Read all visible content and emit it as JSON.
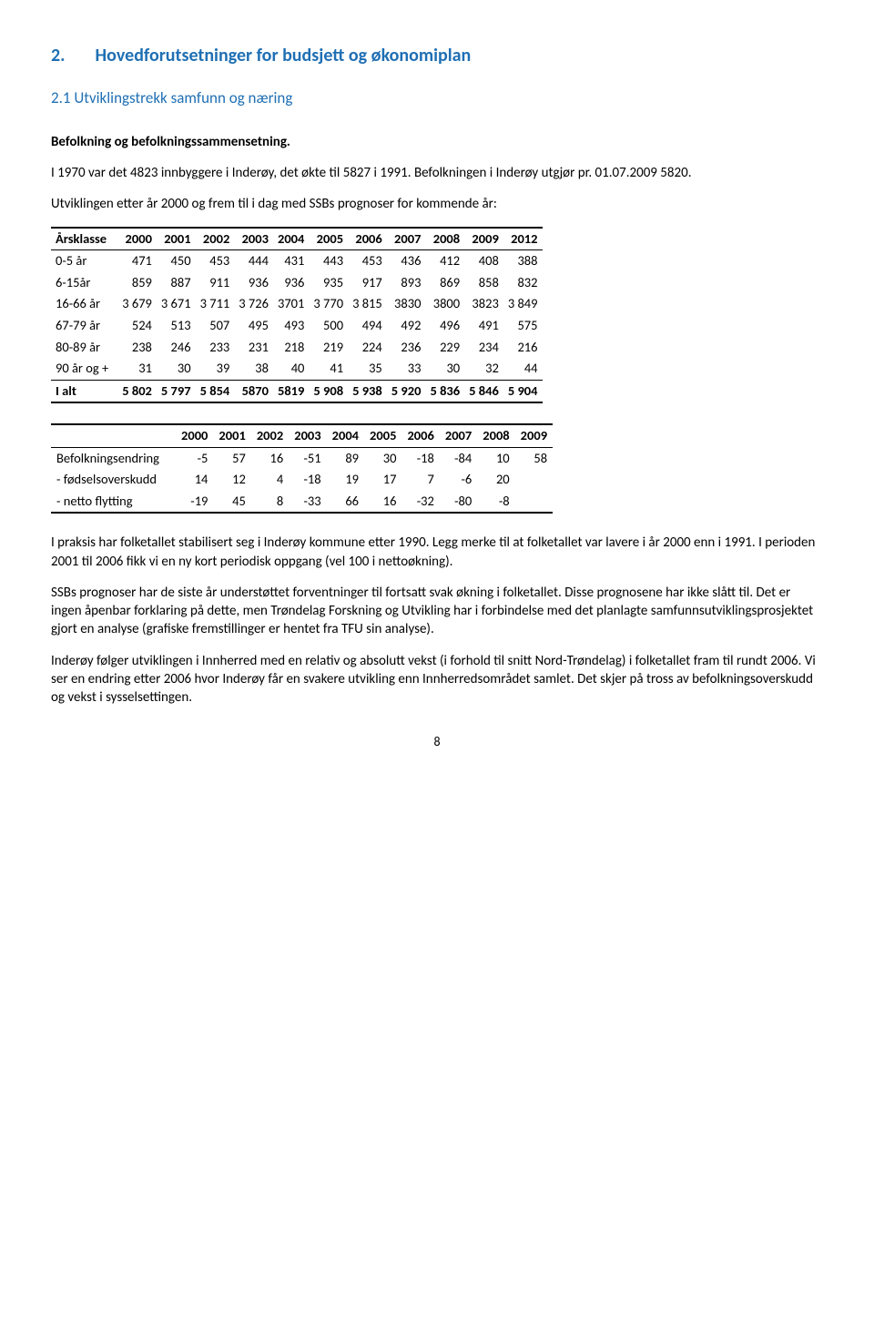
{
  "section": {
    "number": "2.",
    "title": "Hovedforutsetninger for budsjett og økonomiplan",
    "subsection": "2.1 Utviklingstrekk samfunn og næring"
  },
  "para1_label": "Befolkning og befolkningssammensetning.",
  "para2": "I 1970 var det 4823 innbyggere i Inderøy, det økte til 5827 i 1991. Befolkningen i Inderøy utgjør pr. 01.07.2009 5820.",
  "para3": "Utviklingen etter år 2000 og frem til i dag med SSBs prognoser for kommende år:",
  "table1": {
    "type": "table",
    "columns": [
      "Årsklasse",
      "2000",
      "2001",
      "2002",
      "2003",
      "2004",
      "2005",
      "2006",
      "2007",
      "2008",
      "2009",
      "2012"
    ],
    "rows": [
      [
        "0-5 år",
        "471",
        "450",
        "453",
        "444",
        "431",
        "443",
        "453",
        "436",
        "412",
        "408",
        "388"
      ],
      [
        "6-15år",
        "859",
        "887",
        "911",
        "936",
        "936",
        "935",
        "917",
        "893",
        "869",
        "858",
        "832"
      ],
      [
        "16-66 år",
        "3 679",
        "3 671",
        "3 711",
        "3 726",
        "3701",
        "3 770",
        "3 815",
        "3830",
        "3800",
        "3823",
        "3 849"
      ],
      [
        "67-79 år",
        "524",
        "513",
        "507",
        "495",
        "493",
        "500",
        "494",
        "492",
        "496",
        "491",
        "575"
      ],
      [
        "80-89 år",
        "238",
        "246",
        "233",
        "231",
        "218",
        "219",
        "224",
        "236",
        "229",
        "234",
        "216"
      ],
      [
        "90 år og +",
        "31",
        "30",
        "39",
        "38",
        "40",
        "41",
        "35",
        "33",
        "30",
        "32",
        "44"
      ],
      [
        "I alt",
        "5 802",
        "5 797",
        "5 854",
        "5870",
        "5819",
        "5 908",
        "5 938",
        "5 920",
        "5 836",
        "5 846",
        "5 904"
      ]
    ],
    "last_row_bold": true,
    "font_size": 14.5,
    "border_color": "#000000"
  },
  "table2": {
    "type": "table",
    "columns": [
      "",
      "2000",
      "2001",
      "2002",
      "2003",
      "2004",
      "2005",
      "2006",
      "2007",
      "2008",
      "2009"
    ],
    "rows": [
      [
        "Befolkningsendring",
        "-5",
        "57",
        "16",
        "-51",
        "89",
        "30",
        "-18",
        "-84",
        "10",
        "58"
      ],
      [
        "- fødselsoverskudd",
        "14",
        "12",
        "4",
        "-18",
        "19",
        "17",
        "7",
        "-6",
        "20",
        ""
      ],
      [
        "- netto flytting",
        "-19",
        "45",
        "8",
        "-33",
        "66",
        "16",
        "-32",
        "-80",
        "-8",
        ""
      ]
    ],
    "font_size": 14.5,
    "border_color": "#000000"
  },
  "para4": "I praksis har folketallet stabilisert seg i Inderøy kommune etter 1990. Legg merke til at folketallet var lavere i år 2000 enn i 1991. I perioden 2001 til 2006 fikk vi en ny kort periodisk oppgang (vel 100 i nettoøkning).",
  "para5": "SSBs prognoser har de siste år understøttet forventninger til fortsatt svak økning i folketallet. Disse prognosene har ikke slått til. Det er ingen åpenbar forklaring på dette, men Trøndelag Forskning og Utvikling har i forbindelse med det planlagte samfunnsutviklingsprosjektet gjort en analyse (grafiske fremstillinger er hentet fra TFU sin analyse).",
  "para6": "Inderøy følger utviklingen i Innherred med en relativ og absolutt vekst (i forhold til snitt Nord-Trøndelag) i folketallet fram til rundt 2006. Vi ser en endring etter 2006 hvor Inderøy får en svakere utvikling enn Innherredsområdet samlet.  Det skjer på tross av befolkningsoverskudd og vekst i sysselsettingen.",
  "page_number": "8",
  "colors": {
    "heading": "#1f6fb4",
    "text": "#000000",
    "background": "#ffffff"
  }
}
